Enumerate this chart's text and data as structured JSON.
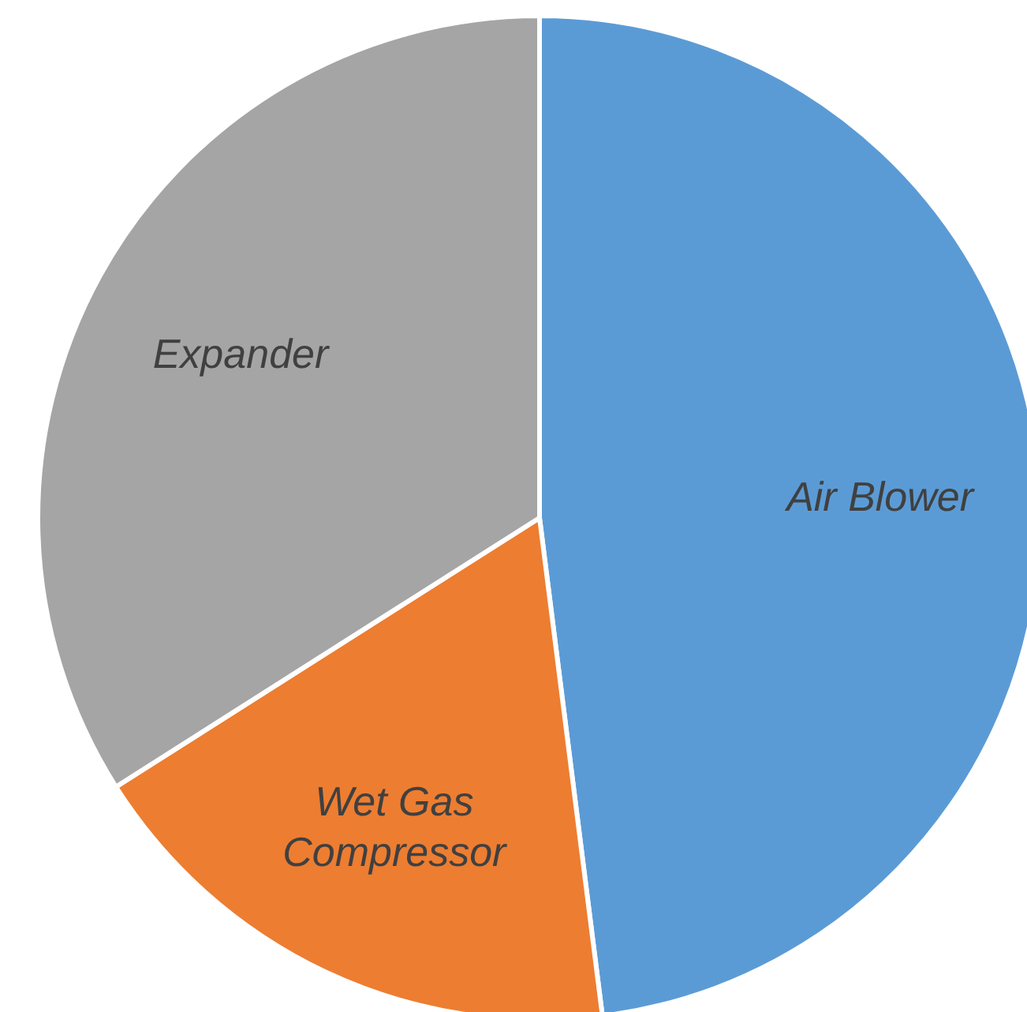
{
  "chart_data": {
    "type": "pie",
    "categories": [
      "Air Blower",
      "Wet Gas Compressor",
      "Expander"
    ],
    "values": [
      48,
      18,
      34
    ],
    "colors": [
      "#5b9bd5",
      "#ed7d31",
      "#a5a5a5"
    ],
    "legend": false
  }
}
